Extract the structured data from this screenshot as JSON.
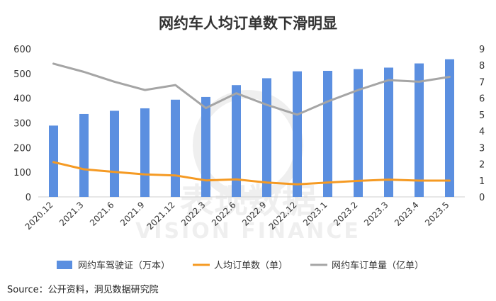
{
  "chart_data": {
    "type": "bar",
    "title": "网约车人均订单数下滑明显",
    "categories": [
      "2020.12",
      "2021.3",
      "2021.6",
      "2021.9",
      "2021.12",
      "2022.3",
      "2022.6",
      "2022.9",
      "2022.12",
      "2023.1",
      "2023.2",
      "2023.3",
      "2023.4",
      "2023.5"
    ],
    "series": [
      {
        "name": "网约车驾驶证（万本）",
        "type": "bar",
        "axis": "left",
        "color": "#5B8FE0",
        "values": [
          289,
          336,
          349,
          359,
          394,
          405,
          453,
          481,
          509,
          511,
          518,
          524,
          541,
          558
        ]
      },
      {
        "name": "人均订单数（单）",
        "type": "line",
        "axis": "left",
        "color": "#F59A23",
        "values": [
          141,
          112,
          101,
          91,
          87,
          67,
          71,
          58,
          51,
          58,
          65,
          70,
          66,
          66
        ]
      },
      {
        "name": "网约车订单量（亿单）",
        "type": "line",
        "axis": "right",
        "color": "#A5A5A5",
        "values": [
          8.1,
          7.6,
          7.0,
          6.5,
          6.8,
          5.4,
          6.3,
          5.6,
          5.0,
          5.8,
          6.5,
          7.1,
          7.0,
          7.3
        ]
      }
    ],
    "ylim": [
      0,
      600
    ],
    "yticks": [
      0,
      100,
      200,
      300,
      400,
      500,
      600
    ],
    "y2lim": [
      0,
      9
    ],
    "y2ticks": [
      0,
      1,
      2,
      3,
      4,
      5,
      6,
      7,
      8,
      9
    ],
    "grid": false,
    "legend_position": "bottom"
  },
  "source": "Source：公开资料，洞见数据研究院",
  "watermark": {
    "main": "表现数据",
    "sub": "VISION FINANCE"
  }
}
